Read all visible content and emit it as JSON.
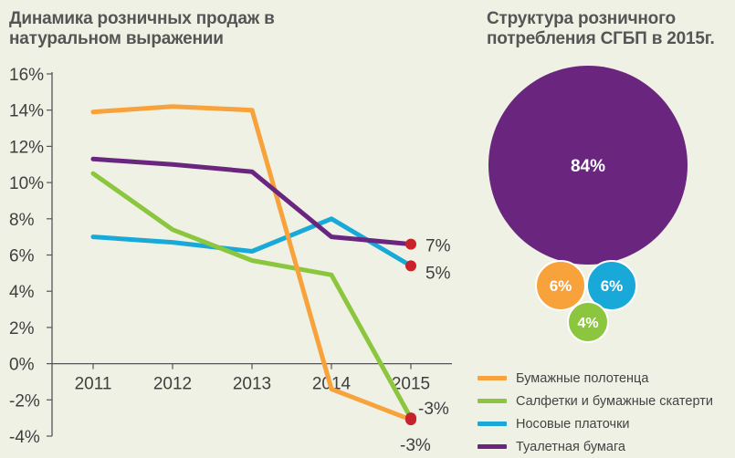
{
  "titles": {
    "line_title": "Динамика розничных продаж в натуральном выражении",
    "bubble_title": "Структура розничного потребления СГБП в 2015г."
  },
  "colors": {
    "towels": "#f7a23b",
    "napkins": "#8cc63e",
    "handkerchiefs": "#19a9d9",
    "toilet": "#6a267f",
    "endpoint": "#c8232c",
    "axis": "#555555"
  },
  "chart_data": [
    {
      "type": "line",
      "x": [
        "2011",
        "2012",
        "2013",
        "2014",
        "2015"
      ],
      "ylim": [
        -4,
        16
      ],
      "yticks": [
        -4,
        -2,
        0,
        2,
        4,
        6,
        8,
        10,
        12,
        14,
        16
      ],
      "ytick_labels": [
        "-4%",
        "-2%",
        "0%",
        "2%",
        "4%",
        "6%",
        "8%",
        "10%",
        "12%",
        "14%",
        "16%"
      ],
      "grid": false,
      "series": [
        {
          "name": "Бумажные полотенца",
          "color_key": "towels",
          "values": [
            13.9,
            14.2,
            14.0,
            -1.4,
            -3.1
          ]
        },
        {
          "name": "Салфетки и бумажные скатерти",
          "color_key": "napkins",
          "values": [
            10.5,
            7.4,
            5.7,
            4.9,
            -3.0
          ]
        },
        {
          "name": "Носовые платочки",
          "color_key": "handkerchiefs",
          "values": [
            7.0,
            6.7,
            6.2,
            8.0,
            5.4
          ]
        },
        {
          "name": "Туалетная бумага",
          "color_key": "toilet",
          "values": [
            11.3,
            11.0,
            10.6,
            7.0,
            6.6
          ]
        }
      ],
      "endpoint_labels": [
        {
          "series": "Туалетная бумага",
          "text": "7%"
        },
        {
          "series": "Носовые платочки",
          "text": "5%"
        },
        {
          "series": "Салфетки и бумажные скатерти",
          "text": "-3%"
        },
        {
          "series": "Бумажные полотенца",
          "text": "-3%"
        }
      ],
      "legend_placement": "bottom-right"
    },
    {
      "type": "pie",
      "style": "bubbles",
      "slices": [
        {
          "name": "Туалетная бумага",
          "label": "84%",
          "value": 84,
          "color_key": "toilet"
        },
        {
          "name": "Бумажные полотенца",
          "label": "6%",
          "value": 6,
          "color_key": "towels"
        },
        {
          "name": "Носовые платочки",
          "label": "6%",
          "value": 6,
          "color_key": "handkerchiefs"
        },
        {
          "name": "Салфетки и бумажные скатерти",
          "label": "4%",
          "value": 4,
          "color_key": "napkins"
        }
      ]
    }
  ]
}
